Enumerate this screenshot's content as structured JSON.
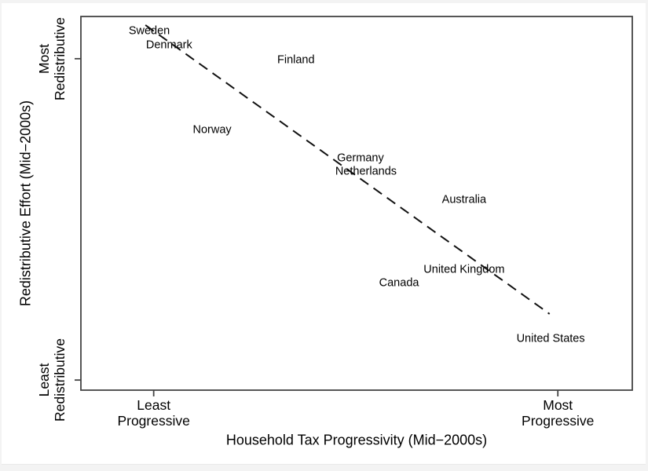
{
  "figure": {
    "background": "#ffffff",
    "frame_color": "#444444",
    "trend_color": "#111111",
    "text_color": "#000000"
  },
  "chart_data": {
    "type": "scatter",
    "point_style": "text-label-markers",
    "title": "",
    "xlabel": "Household Tax Progressivity (Mid−2000s)",
    "ylabel": "Redistributive Effort (Mid−2000s)",
    "xlim": [
      0,
      1
    ],
    "ylim": [
      0,
      1
    ],
    "grid": false,
    "legend": false,
    "x_ticks": [
      0.132,
      0.865
    ],
    "y_ticks": [
      0.887,
      0.027
    ],
    "x_tick_labels": [
      "Least\nProgressive",
      "Most\nProgressive"
    ],
    "y_tick_labels": [
      "Most\nRedistributive",
      "Least\nRedistributive"
    ],
    "points": [
      {
        "label": "Sweden",
        "x": 0.124,
        "y": 0.96
      },
      {
        "label": "Denmark",
        "x": 0.16,
        "y": 0.922
      },
      {
        "label": "Finland",
        "x": 0.39,
        "y": 0.882
      },
      {
        "label": "Norway",
        "x": 0.238,
        "y": 0.695
      },
      {
        "label": "Germany",
        "x": 0.507,
        "y": 0.62
      },
      {
        "label": "Netherlands",
        "x": 0.517,
        "y": 0.584
      },
      {
        "label": "Australia",
        "x": 0.695,
        "y": 0.508
      },
      {
        "label": "United Kingdom",
        "x": 0.695,
        "y": 0.321
      },
      {
        "label": "Canada",
        "x": 0.577,
        "y": 0.286
      },
      {
        "label": "United States",
        "x": 0.852,
        "y": 0.137
      }
    ],
    "trend_line": {
      "style": "dashed",
      "x1": 0.117,
      "y1": 0.977,
      "x2": 0.85,
      "y2": 0.204
    }
  }
}
